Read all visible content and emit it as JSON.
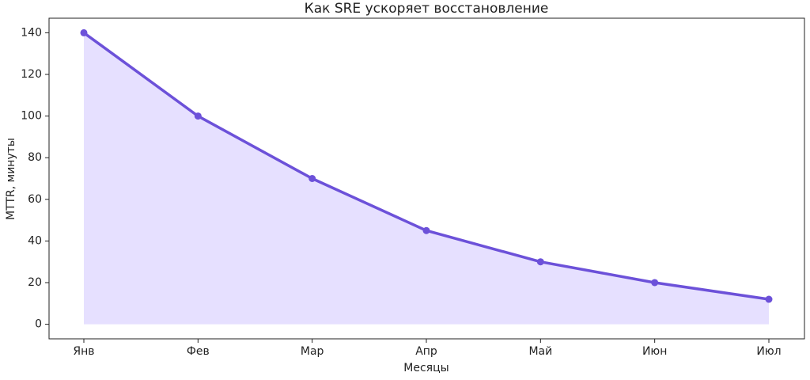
{
  "chart_data": {
    "type": "line",
    "title": "Как SRE ускоряет восстановление",
    "x_label": "Месяцы",
    "y_label": "MTTR, минуты",
    "categories": [
      "Янв",
      "Фев",
      "Мар",
      "Апр",
      "Май",
      "Июн",
      "Июл"
    ],
    "series": [
      {
        "name": "MTTR",
        "color": "#6c51d9",
        "fill": "#e6e0ff",
        "values": [
          140,
          100,
          70,
          45,
          30,
          20,
          12
        ]
      }
    ],
    "ylim": [
      -7,
      147
    ],
    "yticks": [
      0,
      20,
      40,
      60,
      80,
      100,
      120,
      140
    ],
    "grid": false
  }
}
